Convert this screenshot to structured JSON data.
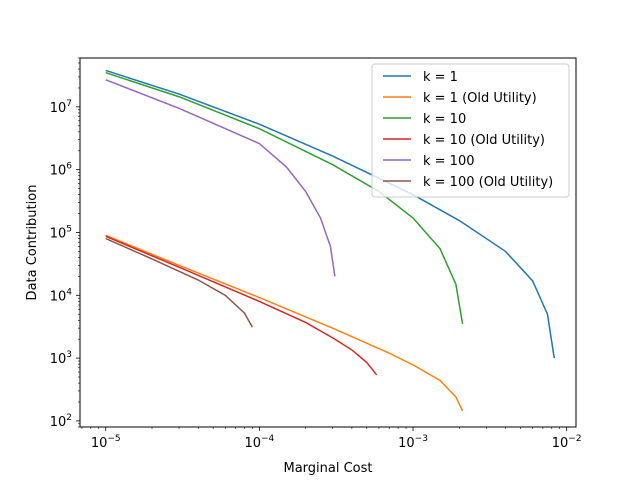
{
  "chart_data": {
    "type": "line",
    "title": "",
    "xlabel": "Marginal Cost",
    "ylabel": "Data Contribution",
    "xscale": "log",
    "yscale": "log",
    "xlim": [
      6.8e-06,
      0.0115
    ],
    "ylim": [
      80,
      60000000
    ],
    "x_ticks": [
      {
        "value": 1e-05,
        "base": "10",
        "exp": "−5"
      },
      {
        "value": 0.0001,
        "base": "10",
        "exp": "−4"
      },
      {
        "value": 0.001,
        "base": "10",
        "exp": "−3"
      },
      {
        "value": 0.01,
        "base": "10",
        "exp": "−2"
      }
    ],
    "y_ticks": [
      {
        "value": 100,
        "base": "10",
        "exp": "2"
      },
      {
        "value": 1000,
        "base": "10",
        "exp": "3"
      },
      {
        "value": 10000,
        "base": "10",
        "exp": "4"
      },
      {
        "value": 100000,
        "base": "10",
        "exp": "5"
      },
      {
        "value": 1000000,
        "base": "10",
        "exp": "6"
      },
      {
        "value": 10000000,
        "base": "10",
        "exp": "7"
      }
    ],
    "grid": false,
    "legend_position": "top-right",
    "series": [
      {
        "name": "k = 1",
        "color": "#1f77b4",
        "points": [
          [
            1e-05,
            38000000
          ],
          [
            3e-05,
            16000000
          ],
          [
            0.0001,
            5300000
          ],
          [
            0.0003,
            1650000
          ],
          [
            0.001,
            400000
          ],
          [
            0.002,
            155000
          ],
          [
            0.004,
            50000
          ],
          [
            0.006,
            17000
          ],
          [
            0.0075,
            5000
          ],
          [
            0.0083,
            1000
          ]
        ]
      },
      {
        "name": "k = 1 (Old Utility)",
        "color": "#ff7f0e",
        "points": [
          [
            1e-05,
            90000
          ],
          [
            3e-05,
            30000
          ],
          [
            0.0001,
            9200
          ],
          [
            0.0003,
            3000
          ],
          [
            0.0007,
            1200
          ],
          [
            0.001,
            780
          ],
          [
            0.0015,
            440
          ],
          [
            0.0019,
            240
          ],
          [
            0.0021,
            145
          ]
        ]
      },
      {
        "name": "k = 10",
        "color": "#2ca02c",
        "points": [
          [
            1e-05,
            35000000
          ],
          [
            3e-05,
            14500000
          ],
          [
            0.0001,
            4500000
          ],
          [
            0.0003,
            1200000
          ],
          [
            0.0006,
            450000
          ],
          [
            0.001,
            170000
          ],
          [
            0.0015,
            55000
          ],
          [
            0.0019,
            15000
          ],
          [
            0.0021,
            3500
          ]
        ]
      },
      {
        "name": "k = 10 (Old Utility)",
        "color": "#d62728",
        "points": [
          [
            1e-05,
            87000
          ],
          [
            3e-05,
            28000
          ],
          [
            0.0001,
            8000
          ],
          [
            0.0002,
            3700
          ],
          [
            0.0003,
            2100
          ],
          [
            0.0004,
            1350
          ],
          [
            0.0005,
            850
          ],
          [
            0.00058,
            540
          ]
        ]
      },
      {
        "name": "k = 100",
        "color": "#9467bd",
        "points": [
          [
            1e-05,
            27000000
          ],
          [
            3e-05,
            9500000
          ],
          [
            0.0001,
            2600000
          ],
          [
            0.00015,
            1100000
          ],
          [
            0.0002,
            450000
          ],
          [
            0.00025,
            170000
          ],
          [
            0.00029,
            60000
          ],
          [
            0.00031,
            20000
          ]
        ]
      },
      {
        "name": "k = 100 (Old Utility)",
        "color": "#8c564b",
        "points": [
          [
            1e-05,
            80000
          ],
          [
            2e-05,
            38000
          ],
          [
            4e-05,
            17500
          ],
          [
            6e-05,
            10000
          ],
          [
            8e-05,
            5200
          ],
          [
            9e-05,
            3100
          ]
        ]
      }
    ]
  }
}
